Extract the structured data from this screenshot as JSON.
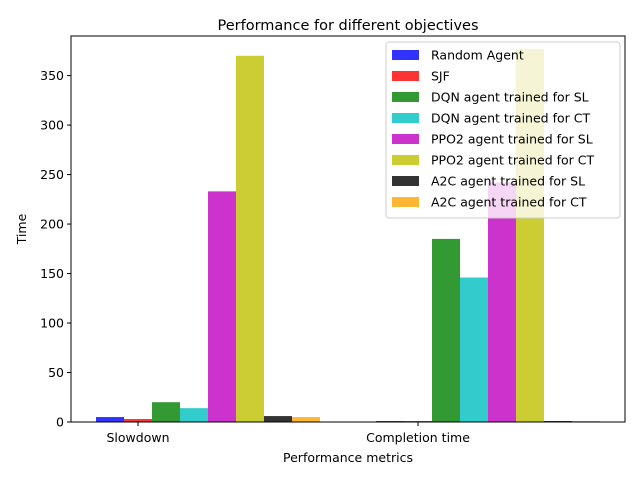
{
  "chart_data": {
    "type": "bar",
    "title": "Performance for different objectives",
    "xlabel": "Performance metrics",
    "ylabel": "Time",
    "categories": [
      "Slowdown",
      "Completion time"
    ],
    "ylim": [
      0,
      390
    ],
    "yticks": [
      0,
      50,
      100,
      150,
      200,
      250,
      300,
      350
    ],
    "grid": false,
    "legend_position": "top-right",
    "series": [
      {
        "name": "Random Agent",
        "color": "#0000ff",
        "values": [
          5,
          1
        ]
      },
      {
        "name": "SJF",
        "color": "#ff0000",
        "values": [
          3,
          1
        ]
      },
      {
        "name": "DQN agent trained for SL",
        "color": "#008000",
        "values": [
          20,
          185
        ]
      },
      {
        "name": "DQN agent trained for CT",
        "color": "#00bfbf",
        "values": [
          14,
          146
        ]
      },
      {
        "name": "PPO2 agent trained for SL",
        "color": "#bf00bf",
        "values": [
          233,
          242
        ]
      },
      {
        "name": "PPO2 agent trained for CT",
        "color": "#bfbf00",
        "values": [
          370,
          377
        ]
      },
      {
        "name": "A2C agent trained for SL",
        "color": "#000000",
        "values": [
          6,
          1
        ]
      },
      {
        "name": "A2C agent trained for CT",
        "color": "#ffa500",
        "values": [
          5,
          1
        ]
      }
    ]
  }
}
